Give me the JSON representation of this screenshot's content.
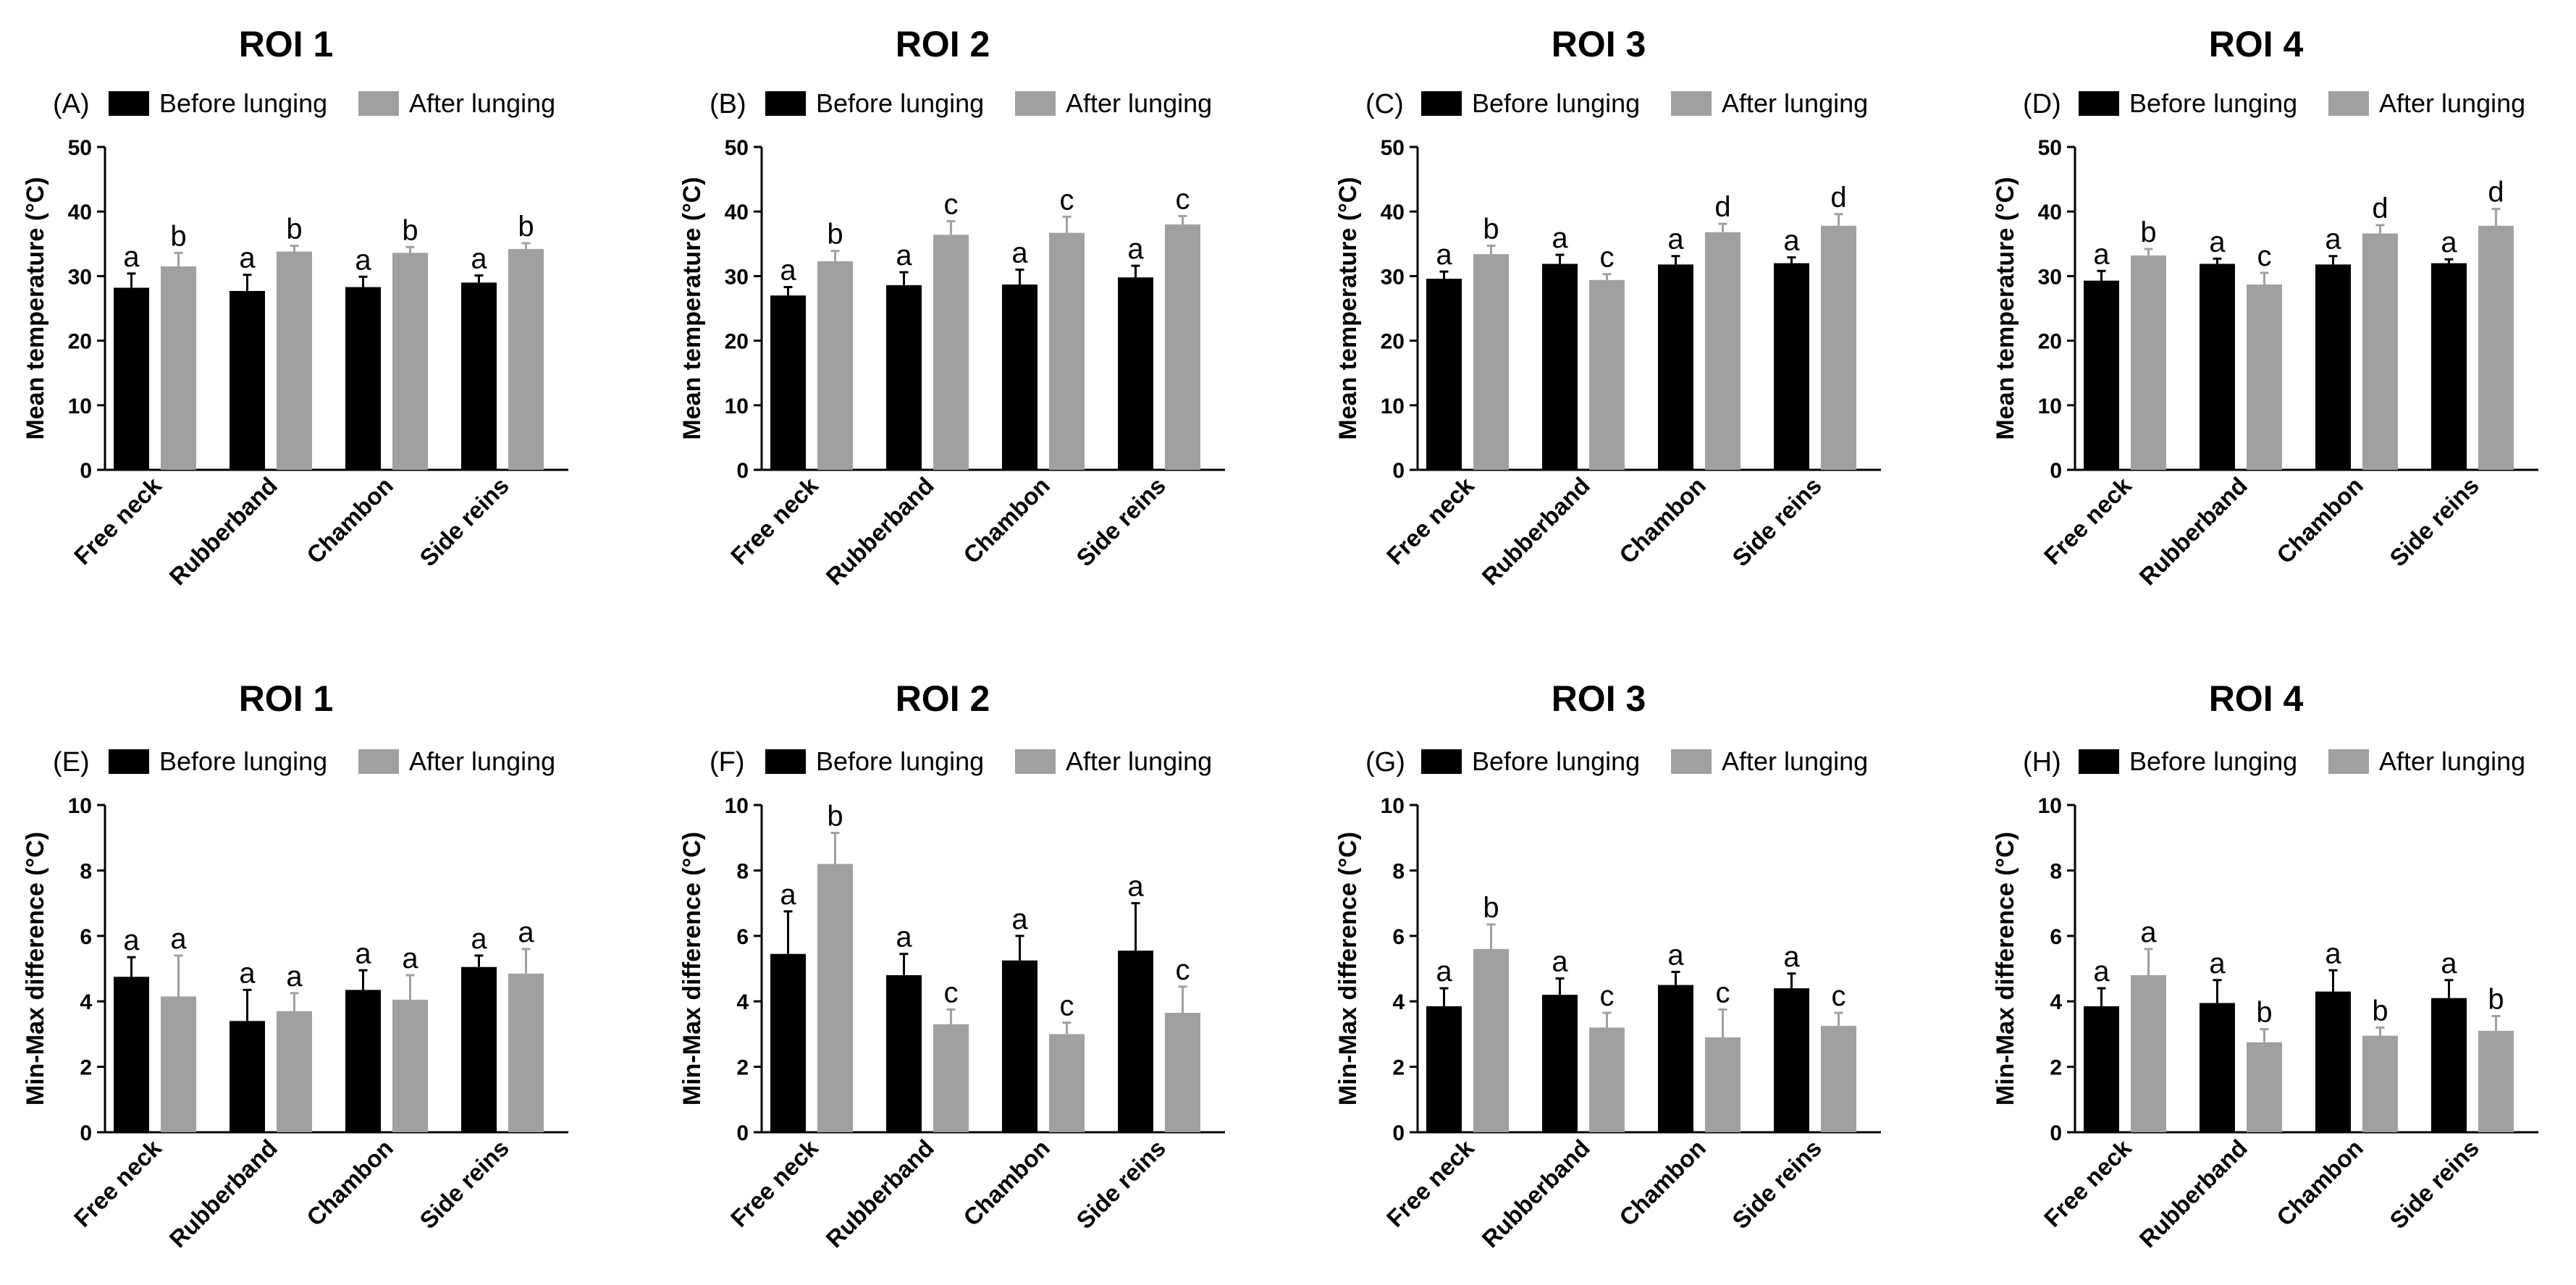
{
  "colors": {
    "before": "#000000",
    "after": "#a0a0a0",
    "axis": "#000000"
  },
  "chart_data": [
    {
      "panel": "(A)",
      "title": "ROI 1",
      "type": "bar",
      "ylabel": "Mean temperature  (°C)",
      "ylim": [
        0,
        50
      ],
      "yticks": [
        "0",
        "10",
        "20",
        "30",
        "40",
        "50"
      ],
      "categories": [
        "Free neck",
        "Rubberband",
        "Chambon",
        "Side reins"
      ],
      "series": [
        {
          "name": "Before lunging",
          "values": [
            28.2,
            27.7,
            28.3,
            29.0
          ],
          "errors": [
            2.2,
            2.5,
            1.6,
            1.1
          ],
          "labels": [
            "a",
            "a",
            "a",
            "a"
          ]
        },
        {
          "name": "After lunging",
          "values": [
            31.5,
            33.8,
            33.6,
            34.2
          ],
          "errors": [
            2.1,
            0.9,
            0.9,
            0.9
          ],
          "labels": [
            "b",
            "b",
            "b",
            "b"
          ]
        }
      ]
    },
    {
      "panel": "(B)",
      "title": "ROI 2",
      "type": "bar",
      "ylabel": "Mean temperature  (°C)",
      "ylim": [
        0,
        50
      ],
      "yticks": [
        "0",
        "10",
        "20",
        "30",
        "40",
        "50"
      ],
      "categories": [
        "Free neck",
        "Rubberband",
        "Chambon",
        "Side reins"
      ],
      "series": [
        {
          "name": "Before lunging",
          "values": [
            27.0,
            28.6,
            28.7,
            29.8
          ],
          "errors": [
            1.3,
            2.0,
            2.3,
            1.8
          ],
          "labels": [
            "a",
            "a",
            "a",
            "a"
          ]
        },
        {
          "name": "After lunging",
          "values": [
            32.3,
            36.4,
            36.7,
            38.0
          ],
          "errors": [
            1.6,
            2.1,
            2.5,
            1.3
          ],
          "labels": [
            "b",
            "c",
            "c",
            "c"
          ]
        }
      ]
    },
    {
      "panel": "(C)",
      "title": "ROI 3",
      "type": "bar",
      "ylabel": "Mean temperature  (°C)",
      "ylim": [
        0,
        50
      ],
      "yticks": [
        "0",
        "10",
        "20",
        "30",
        "40",
        "50"
      ],
      "categories": [
        "Free neck",
        "Rubberband",
        "Chambon",
        "Side reins"
      ],
      "series": [
        {
          "name": "Before lunging",
          "values": [
            29.6,
            31.9,
            31.8,
            32.0
          ],
          "errors": [
            1.1,
            1.4,
            1.3,
            0.9
          ],
          "labels": [
            "a",
            "a",
            "a",
            "a"
          ]
        },
        {
          "name": "After lunging",
          "values": [
            33.4,
            29.4,
            36.8,
            37.8
          ],
          "errors": [
            1.3,
            0.9,
            1.3,
            1.8
          ],
          "labels": [
            "b",
            "c",
            "d",
            "d"
          ]
        }
      ]
    },
    {
      "panel": "(D)",
      "title": "ROI 4",
      "type": "bar",
      "ylabel": "Mean temperature  (°C)",
      "ylim": [
        0,
        50
      ],
      "yticks": [
        "0",
        "10",
        "20",
        "30",
        "40",
        "50"
      ],
      "categories": [
        "Free neck",
        "Rubberband",
        "Chambon",
        "Side reins"
      ],
      "series": [
        {
          "name": "Before lunging",
          "values": [
            29.3,
            31.9,
            31.8,
            32.0
          ],
          "errors": [
            1.5,
            0.8,
            1.3,
            0.6
          ],
          "labels": [
            "a",
            "a",
            "a",
            "a"
          ]
        },
        {
          "name": "After lunging",
          "values": [
            33.2,
            28.7,
            36.6,
            37.8
          ],
          "errors": [
            1.0,
            1.8,
            1.3,
            2.6
          ],
          "labels": [
            "b",
            "c",
            "d",
            "d"
          ]
        }
      ]
    },
    {
      "panel": "(E)",
      "title": "ROI 1",
      "type": "bar",
      "ylabel": "Min-Max difference  (°C)",
      "ylim": [
        0,
        10
      ],
      "yticks": [
        "0",
        "2",
        "4",
        "6",
        "8",
        "10"
      ],
      "categories": [
        "Free neck",
        "Rubberband",
        "Chambon",
        "Side reins"
      ],
      "series": [
        {
          "name": "Before lunging",
          "values": [
            4.75,
            3.4,
            4.35,
            5.05
          ],
          "errors": [
            0.6,
            0.95,
            0.6,
            0.35
          ],
          "labels": [
            "a",
            "a",
            "a",
            "a"
          ]
        },
        {
          "name": "After lunging",
          "values": [
            4.15,
            3.7,
            4.05,
            4.85
          ],
          "errors": [
            1.25,
            0.55,
            0.75,
            0.75
          ],
          "labels": [
            "a",
            "a",
            "a",
            "a"
          ]
        }
      ]
    },
    {
      "panel": "(F)",
      "title": "ROI 2",
      "type": "bar",
      "ylabel": "Min-Max difference  (°C)",
      "ylim": [
        0,
        10
      ],
      "yticks": [
        "0",
        "2",
        "4",
        "6",
        "8",
        "10"
      ],
      "categories": [
        "Free neck",
        "Rubberband",
        "Chambon",
        "Side reins"
      ],
      "series": [
        {
          "name": "Before lunging",
          "values": [
            5.45,
            4.8,
            5.25,
            5.55
          ],
          "errors": [
            1.3,
            0.65,
            0.75,
            1.45
          ],
          "labels": [
            "a",
            "a",
            "a",
            "a"
          ]
        },
        {
          "name": "After lunging",
          "values": [
            8.2,
            3.3,
            3.0,
            3.65
          ],
          "errors": [
            0.95,
            0.45,
            0.35,
            0.8
          ],
          "labels": [
            "b",
            "c",
            "c",
            "c"
          ]
        }
      ]
    },
    {
      "panel": "(G)",
      "title": "ROI 3",
      "type": "bar",
      "ylabel": "Min-Max difference  (°C)",
      "ylim": [
        0,
        10
      ],
      "yticks": [
        "0",
        "2",
        "4",
        "6",
        "8",
        "10"
      ],
      "categories": [
        "Free neck",
        "Rubberband",
        "Chambon",
        "Side reins"
      ],
      "series": [
        {
          "name": "Before lunging",
          "values": [
            3.85,
            4.2,
            4.5,
            4.4
          ],
          "errors": [
            0.55,
            0.5,
            0.4,
            0.45
          ],
          "labels": [
            "a",
            "a",
            "a",
            "a"
          ]
        },
        {
          "name": "After lunging",
          "values": [
            5.6,
            3.2,
            2.9,
            3.25
          ],
          "errors": [
            0.75,
            0.45,
            0.85,
            0.4
          ],
          "labels": [
            "b",
            "c",
            "c",
            "c"
          ]
        }
      ]
    },
    {
      "panel": "(H)",
      "title": "ROI 4",
      "type": "bar",
      "ylabel": "Min-Max difference  (°C)",
      "ylim": [
        0,
        10
      ],
      "yticks": [
        "0",
        "2",
        "4",
        "6",
        "8",
        "10"
      ],
      "categories": [
        "Free neck",
        "Rubberband",
        "Chambon",
        "Side reins"
      ],
      "series": [
        {
          "name": "Before lunging",
          "values": [
            3.85,
            3.95,
            4.3,
            4.1
          ],
          "errors": [
            0.55,
            0.7,
            0.65,
            0.55
          ],
          "labels": [
            "a",
            "a",
            "a",
            "a"
          ]
        },
        {
          "name": "After lunging",
          "values": [
            4.8,
            2.75,
            2.95,
            3.1
          ],
          "errors": [
            0.8,
            0.4,
            0.25,
            0.45
          ],
          "labels": [
            "a",
            "b",
            "b",
            "b"
          ]
        }
      ]
    }
  ]
}
